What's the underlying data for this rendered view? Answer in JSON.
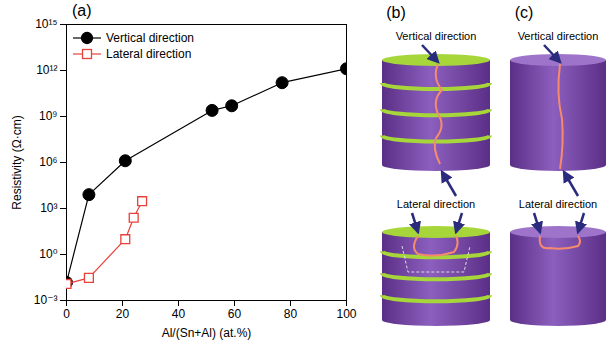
{
  "chart_data": {
    "type": "line",
    "title": "(a)",
    "x_label": "Al/(Sn+Al) (at.%)",
    "y_label": "Resistivity (Ω·cm)",
    "log": "y",
    "xlim": [
      0,
      100
    ],
    "xticks": [
      0,
      20,
      40,
      60,
      80,
      100
    ],
    "ylim": [
      0.001,
      1000000000000000.0
    ],
    "yticks": [
      {
        "value": 0.001,
        "label": "10⁻³"
      },
      {
        "value": 1,
        "label": "10⁰"
      },
      {
        "value": 1000,
        "label": "10³"
      },
      {
        "value": 1000000,
        "label": "10⁶"
      },
      {
        "value": 1000000000,
        "label": "10⁹"
      },
      {
        "value": 1000000000000,
        "label": "10¹²"
      },
      {
        "value": 1000000000000000,
        "label": "10¹⁵"
      }
    ],
    "legend": "top-left",
    "series": [
      {
        "name": "Vertical direction",
        "color": "#000000",
        "marker": "circle",
        "x": [
          0,
          8,
          21,
          52,
          59,
          77,
          100
        ],
        "values": [
          0.015,
          8000,
          1300000,
          2500000000,
          5000000000,
          160000000000,
          1300000000000
        ]
      },
      {
        "name": "Lateral direction",
        "color": "#e8403a",
        "marker": "open-square",
        "x": [
          0,
          8,
          21,
          24,
          27
        ],
        "values": [
          0.012,
          0.03,
          10,
          250,
          3000
        ]
      }
    ]
  },
  "diagrams": [
    {
      "label": "(b)",
      "texts": [
        "Vertical direction",
        "Lateral direction"
      ]
    },
    {
      "label": "(c)",
      "texts": [
        "Vertical direction",
        "Lateral direction"
      ]
    }
  ]
}
